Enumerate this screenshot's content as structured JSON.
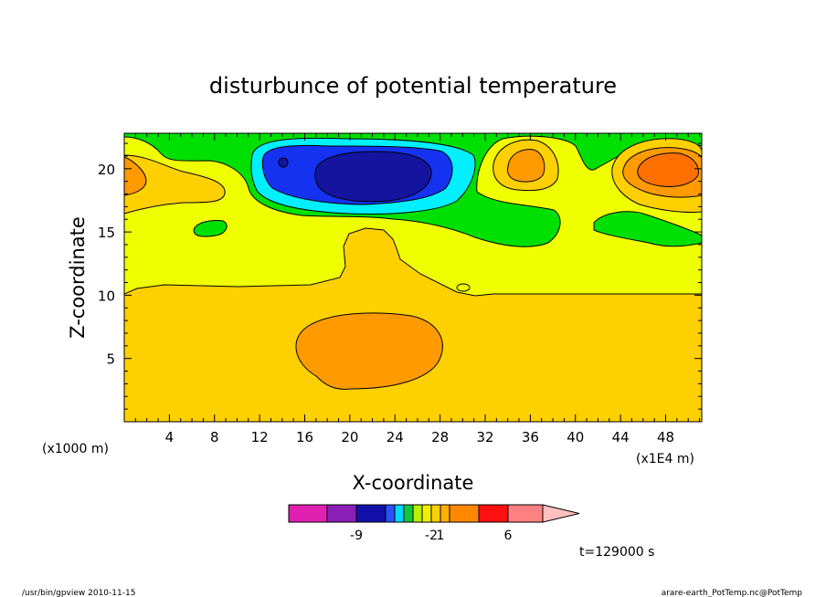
{
  "chart_data": {
    "type": "heatmap",
    "title": "disturbunce of potential temperature",
    "xlabel": "X-coordinate",
    "ylabel": "Z-coordinate",
    "x_unit_label": "(x1E4 m)",
    "z_unit_label": "(x1000 m)",
    "xlim": [
      0,
      51.2
    ],
    "ylim": [
      0,
      22.8
    ],
    "x_ticks": [
      4,
      8,
      12,
      16,
      20,
      24,
      28,
      32,
      36,
      40,
      44,
      48
    ],
    "y_ticks": [
      5,
      10,
      15,
      20
    ],
    "x_ticklabels": [
      "4",
      "8",
      "12",
      "16",
      "20",
      "24",
      "28",
      "32",
      "36",
      "40",
      "44",
      "48"
    ],
    "y_ticklabels": [
      "5",
      "10",
      "15",
      "20"
    ],
    "colorbar": {
      "colors": [
        "#e020b0",
        "#8a20b8",
        "#1010a8",
        "#2a50ff",
        "#00d8ff",
        "#10c840",
        "#b8f000",
        "#f0f000",
        "#ffd000",
        "#ffb000",
        "#ff8800",
        "#ff1010",
        "#ff8080",
        "#ffc0c0"
      ],
      "tick_labels": [
        {
          "text": "-9",
          "index": 2
        },
        {
          "text": "-2",
          "index": 8
        },
        {
          "text": "1",
          "index": 9
        },
        {
          "text": "6",
          "index": 12
        }
      ]
    },
    "fill_levels": {
      "orange": "#ff9a00",
      "gold": "#ffd000",
      "yellow": "#f0ff00",
      "green": "#00e000",
      "cyan": "#00f0ff",
      "blue": "#1432f0",
      "navy": "#1414a0",
      "dark_orange": "#ff7000"
    },
    "time_label": "t=129000 s"
  },
  "footer": {
    "left": "/usr/bin/gpview   2010-11-15",
    "right": "arare-earth_PotTemp.nc@PotTemp"
  }
}
